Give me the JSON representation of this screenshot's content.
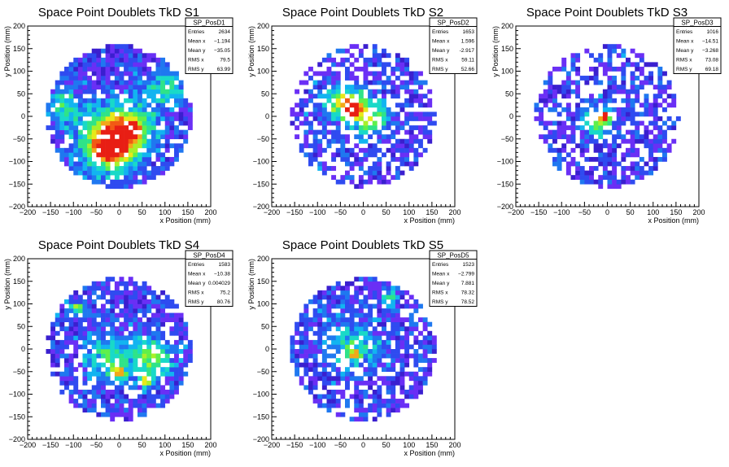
{
  "chart_data": [
    {
      "type": "heatmap",
      "title": "Space Point Doublets TkD S1",
      "xlabel": "x Position (mm)",
      "ylabel": "y Position (mm)",
      "xlim": [
        -200,
        200
      ],
      "ylim": [
        -200,
        200
      ],
      "xticks": [
        -200,
        -150,
        -100,
        -50,
        0,
        50,
        100,
        150,
        200
      ],
      "yticks": [
        -200,
        -150,
        -100,
        -50,
        0,
        50,
        100,
        150,
        200
      ],
      "stats": {
        "name": "SP_PosD1",
        "rows": [
          {
            "label": "Entries",
            "value": "2634"
          },
          {
            "label": "Mean x",
            "value": "−1.194"
          },
          {
            "label": "Mean y",
            "value": "−35.05"
          },
          {
            "label": "RMS x",
            "value": "79.5"
          },
          {
            "label": "RMS y",
            "value": "63.99"
          }
        ]
      },
      "hotspots": [
        {
          "x": -30,
          "y": -70,
          "w": 3.2,
          "r": 40
        },
        {
          "x": 20,
          "y": -30,
          "w": 3.2,
          "r": 40
        },
        {
          "x": -10,
          "y": -50,
          "w": 3.2,
          "r": 40
        },
        {
          "x": -120,
          "y": 20,
          "w": 2.5,
          "r": 28
        },
        {
          "x": 100,
          "y": 60,
          "w": 2.5,
          "r": 28
        },
        {
          "x": -35,
          "y": -75,
          "w": 4.5,
          "r": 12
        },
        {
          "x": 25,
          "y": -25,
          "w": 3.8,
          "r": 12
        }
      ],
      "fill": 0.88
    },
    {
      "type": "heatmap",
      "title": "Space Point Doublets TkD S2",
      "xlabel": "x Position (mm)",
      "ylabel": "y Position (mm)",
      "xlim": [
        -200,
        200
      ],
      "ylim": [
        -200,
        200
      ],
      "xticks": [
        -200,
        -150,
        -100,
        -50,
        0,
        50,
        100,
        150,
        200
      ],
      "yticks": [
        -200,
        -150,
        -100,
        -50,
        0,
        50,
        100,
        150,
        200
      ],
      "stats": {
        "name": "SP_PosD2",
        "rows": [
          {
            "label": "Entries",
            "value": "1653"
          },
          {
            "label": "Mean x",
            "value": "1.596"
          },
          {
            "label": "Mean y",
            "value": "-2.917"
          },
          {
            "label": "RMS x",
            "value": "59.11"
          },
          {
            "label": "RMS y",
            "value": "52.66"
          }
        ]
      },
      "hotspots": [
        {
          "x": -20,
          "y": 20,
          "w": 4.5,
          "r": 25
        },
        {
          "x": 20,
          "y": -5,
          "w": 3.0,
          "r": 25
        },
        {
          "x": -55,
          "y": 35,
          "w": 2.5,
          "r": 22
        },
        {
          "x": -25,
          "y": 20,
          "w": 6,
          "r": 8
        }
      ],
      "fill": 0.62
    },
    {
      "type": "heatmap",
      "title": "Space Point Doublets TkD S3",
      "xlabel": "x Position (mm)",
      "ylabel": "y Position (mm)",
      "xlim": [
        -200,
        200
      ],
      "ylim": [
        -200,
        200
      ],
      "xticks": [
        -200,
        -150,
        -100,
        -50,
        0,
        50,
        100,
        150,
        200
      ],
      "yticks": [
        -200,
        -150,
        -100,
        -50,
        0,
        50,
        100,
        150,
        200
      ],
      "stats": {
        "name": "SP_PosD3",
        "rows": [
          {
            "label": "Entries",
            "value": "1016"
          },
          {
            "label": "Mean x",
            "value": "−14.51"
          },
          {
            "label": "Mean y",
            "value": "−3.268"
          },
          {
            "label": "RMS x",
            "value": "73.08"
          },
          {
            "label": "RMS y",
            "value": "69.18"
          }
        ]
      },
      "hotspots": [
        {
          "x": -20,
          "y": -10,
          "w": 4.0,
          "r": 20
        },
        {
          "x": -5,
          "y": 0,
          "w": 6,
          "r": 7
        }
      ],
      "fill": 0.6
    },
    {
      "type": "heatmap",
      "title": "Space Point Doublets TkD S4",
      "xlabel": "x Position (mm)",
      "ylabel": "y Position (mm)",
      "xlim": [
        -200,
        200
      ],
      "ylim": [
        -200,
        200
      ],
      "xticks": [
        -200,
        -150,
        -100,
        -50,
        0,
        50,
        100,
        150,
        200
      ],
      "yticks": [
        -200,
        -150,
        -100,
        -50,
        0,
        50,
        100,
        150,
        200
      ],
      "stats": {
        "name": "SP_PosD4",
        "rows": [
          {
            "label": "Entries",
            "value": "1583"
          },
          {
            "label": "Mean x",
            "value": "−10.38"
          },
          {
            "label": "Mean y",
            "value": "0.004029"
          },
          {
            "label": "RMS x",
            "value": "75.2"
          },
          {
            "label": "RMS y",
            "value": "80.76"
          }
        ]
      },
      "hotspots": [
        {
          "x": 70,
          "y": -20,
          "w": 3.5,
          "r": 30
        },
        {
          "x": -20,
          "y": -20,
          "w": 2.5,
          "r": 35
        },
        {
          "x": -90,
          "y": 90,
          "w": 3.5,
          "r": 10
        },
        {
          "x": 0,
          "y": -50,
          "w": 4.0,
          "r": 10
        },
        {
          "x": 60,
          "y": -70,
          "w": 4.0,
          "r": 10
        }
      ],
      "fill": 0.8
    },
    {
      "type": "heatmap",
      "title": "Space Point Doublets TkD S5",
      "xlabel": "x Position (mm)",
      "ylabel": "y Position (mm)",
      "xlim": [
        -200,
        200
      ],
      "ylim": [
        -200,
        200
      ],
      "xticks": [
        -200,
        -150,
        -100,
        -50,
        0,
        50,
        100,
        150,
        200
      ],
      "yticks": [
        -200,
        -150,
        -100,
        -50,
        0,
        50,
        100,
        150,
        200
      ],
      "stats": {
        "name": "SP_PosD5",
        "rows": [
          {
            "label": "Entries",
            "value": "1523"
          },
          {
            "label": "Mean x",
            "value": "−2.799"
          },
          {
            "label": "Mean y",
            "value": "7.881"
          },
          {
            "label": "RMS x",
            "value": "78.32"
          },
          {
            "label": "RMS y",
            "value": "78.52"
          }
        ]
      },
      "hotspots": [
        {
          "x": -20,
          "y": 10,
          "w": 2.0,
          "r": 40
        },
        {
          "x": -20,
          "y": -10,
          "w": 4.0,
          "r": 8
        },
        {
          "x": 60,
          "y": 110,
          "w": 2.5,
          "r": 12
        }
      ],
      "fill": 0.78
    }
  ],
  "colors": {
    "palette": [
      "#3a1fcf",
      "#6a2ff5",
      "#2f4bf0",
      "#1f78f0",
      "#12b4f0",
      "#19d9c8",
      "#2fe388",
      "#5ff04a",
      "#a8f02a",
      "#e8e81a",
      "#f2a81a",
      "#f25a14",
      "#e81e14"
    ],
    "axis": "#000000",
    "box_border": "#000000"
  }
}
